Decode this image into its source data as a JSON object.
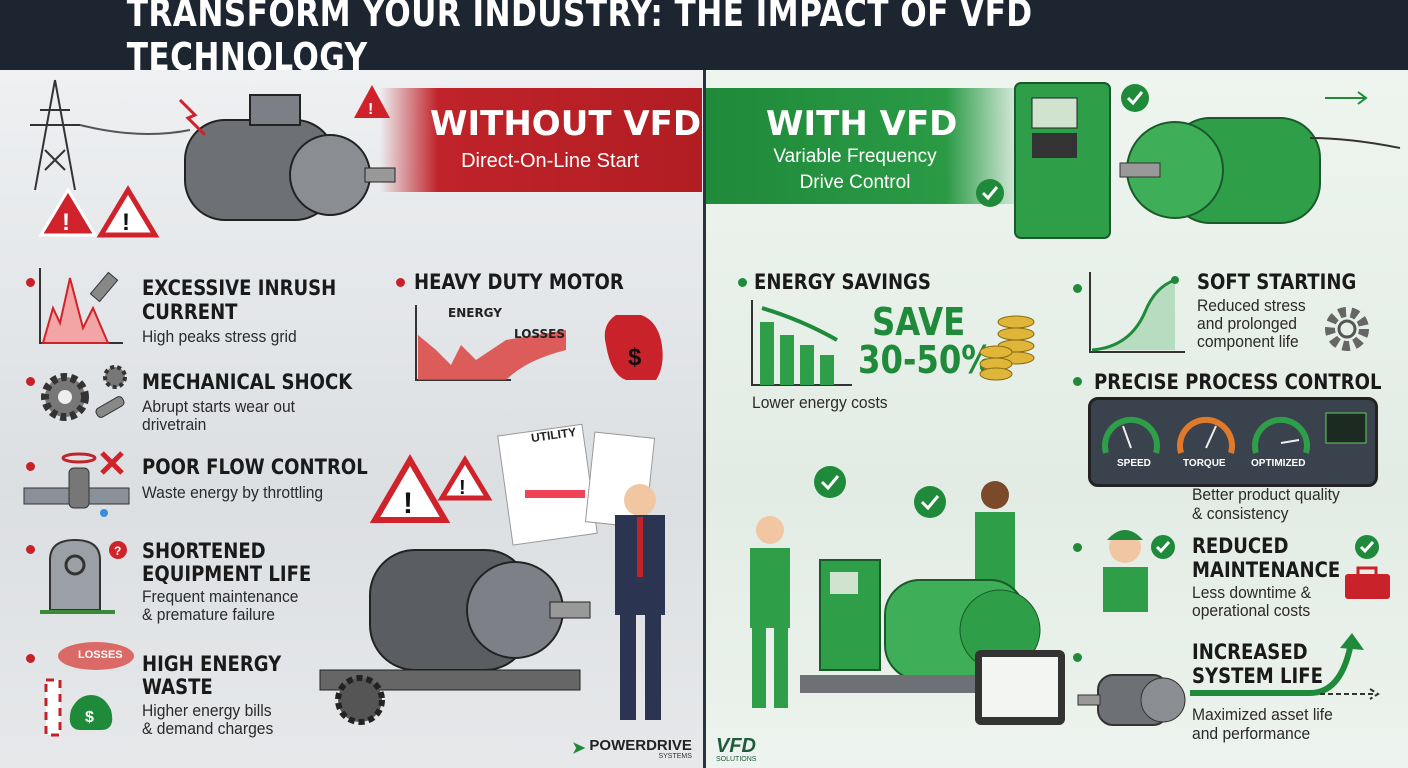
{
  "title": "TRANSFORM YOUR INDUSTRY: THE IMPACT OF VFD TECHNOLOGY",
  "colors": {
    "title_bar": "#1c2530",
    "without_accent": "#c0232a",
    "with_accent": "#1f8a3a"
  },
  "without": {
    "heading": "WITHOUT VFD",
    "subheading": "Direct-On-Line Start",
    "items": [
      {
        "title_lines": [
          "EXCESSIVE INRUSH",
          "CURRENT"
        ],
        "desc_lines": [
          "High peaks stress grid"
        ],
        "icon": "current-spike-chart-icon"
      },
      {
        "title_lines": [
          "MECHANICAL SHOCK"
        ],
        "desc_lines": [
          "Abrupt starts wear out",
          "drivetrain"
        ],
        "icon": "broken-gear-icon"
      },
      {
        "title_lines": [
          "POOR FLOW CONTROL"
        ],
        "desc_lines": [
          "Waste energy by throttling"
        ],
        "icon": "valve-pipe-icon"
      },
      {
        "title_lines": [
          "SHORTENED",
          "EQUIPMENT LIFE"
        ],
        "desc_lines": [
          "Frequent maintenance",
          "& premature failure"
        ],
        "icon": "tombstone-icon"
      },
      {
        "title_lines": [
          "HIGH ENERGY",
          "WASTE"
        ],
        "desc_lines": [
          "Higher energy bills",
          "& demand charges"
        ],
        "icon": "smokestack-money-icon",
        "icon_label": "LOSSES"
      }
    ],
    "heavy_duty": {
      "title": "HEAVY DUTY MOTOR",
      "energy_label": "ENERGY",
      "losses_label": "LOSSES"
    },
    "bill_label": "UTILITY",
    "logo": {
      "name": "POWERDRIVE",
      "tagline": "SYSTEMS"
    }
  },
  "with": {
    "heading": "WITH VFD",
    "subheading_lines": [
      "Variable Frequency",
      "Drive Control"
    ],
    "energy_savings": {
      "title": "ENERGY SAVINGS",
      "save_lines": [
        "SAVE",
        "30-50%"
      ],
      "desc": "Lower energy costs"
    },
    "soft_starting": {
      "title": "SOFT STARTING",
      "desc_lines": [
        "Reduced stress",
        "and prolonged",
        "component life"
      ]
    },
    "precise_control": {
      "title": "PRECISE PROCESS CONTROL",
      "gauges": [
        "SPEED",
        "TORQUE",
        "OPTIMIZED"
      ],
      "desc_lines": [
        "Better product quality",
        "& consistency"
      ]
    },
    "reduced_maintenance": {
      "title_lines": [
        "REDUCED",
        "MAINTENANCE"
      ],
      "desc_lines": [
        "Less downtime &",
        "operational costs"
      ]
    },
    "increased_life": {
      "title_lines": [
        "INCREASED",
        "SYSTEM LIFE"
      ],
      "desc_lines": [
        "Maximized asset life",
        "and performance"
      ]
    },
    "logo": {
      "name": "VFD",
      "tagline": "SOLUTIONS"
    }
  }
}
